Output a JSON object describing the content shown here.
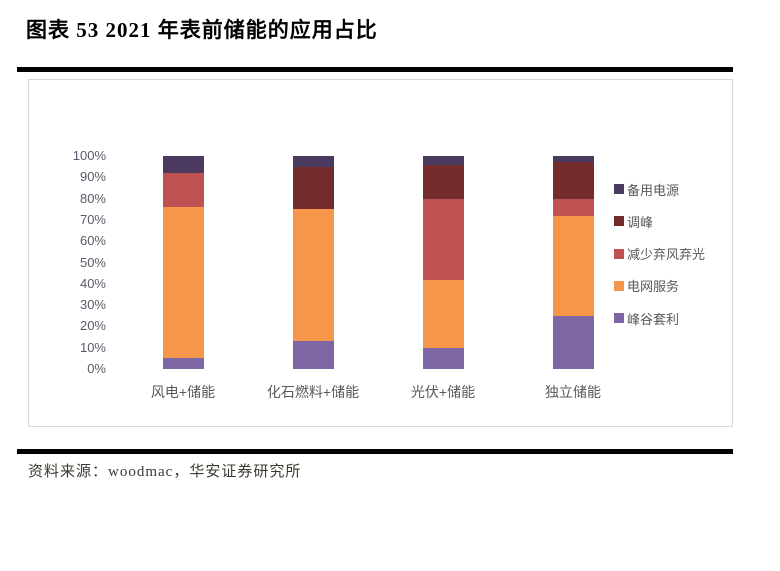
{
  "title": "图表 53 2021 年表前储能的应用占比",
  "source": "资料来源：woodmac，华安证券研究所",
  "palette": {
    "backup_power": "#4a3a5f",
    "peak_shaving": "#742b2c",
    "curtailment_reduction": "#c05152",
    "grid_services": "#f6964a",
    "peak_valley_arbitrage": "#7d66a3",
    "axis_text": "#5d5868",
    "category_text": "#595959",
    "divider": "#000000",
    "panel_border": "#d9d9d9"
  },
  "chart_data": {
    "type": "bar",
    "stacked": true,
    "title": "2021 年表前储能的应用占比",
    "categories": [
      "风电+储能",
      "化石燃料+储能",
      "光伏+储能",
      "独立储能"
    ],
    "series": [
      {
        "key": "peak-valley-arbitrage",
        "name": "峰谷套利",
        "color": "#7d66a3",
        "values": [
          5,
          13,
          10,
          25
        ]
      },
      {
        "key": "grid-services",
        "name": "电网服务",
        "color": "#f6964a",
        "values": [
          71,
          62,
          32,
          47
        ]
      },
      {
        "key": "curtailment-reduction",
        "name": "减少弃风弃光",
        "color": "#c05152",
        "values": [
          16,
          0,
          38,
          8
        ]
      },
      {
        "key": "peak-shaving",
        "name": "调峰",
        "color": "#742b2c",
        "values": [
          0,
          20,
          16,
          17
        ]
      },
      {
        "key": "backup-power",
        "name": "备用电源",
        "color": "#4a3a5f",
        "values": [
          8,
          5,
          4,
          3
        ]
      }
    ],
    "legend": [
      "备用电源",
      "调峰",
      "减少弃风弃光",
      "电网服务",
      "峰谷套利"
    ],
    "legend_position": "right",
    "y_ticks": [
      "100%",
      "90%",
      "80%",
      "70%",
      "60%",
      "50%",
      "40%",
      "30%",
      "20%",
      "10%",
      "0%"
    ],
    "ylim": [
      0,
      100
    ],
    "grid": false,
    "xlabel": "",
    "ylabel": ""
  }
}
